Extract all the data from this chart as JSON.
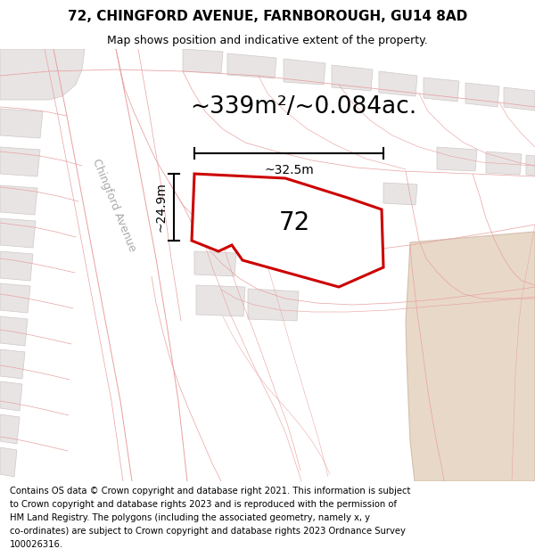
{
  "title_line1": "72, CHINGFORD AVENUE, FARNBOROUGH, GU14 8AD",
  "title_line2": "Map shows position and indicative extent of the property.",
  "area_text": "~339m²/~0.084ac.",
  "property_number": "72",
  "width_label": "~32.5m",
  "height_label": "~24.9m",
  "street_label": "Chingford Avenue",
  "footer_lines": [
    "Contains OS data © Crown copyright and database right 2021. This information is subject",
    "to Crown copyright and database rights 2023 and is reproduced with the permission of",
    "HM Land Registry. The polygons (including the associated geometry, namely x, y",
    "co-ordinates) are subject to Crown copyright and database rights 2023 Ordnance Survey",
    "100026316."
  ],
  "map_bg": "#f9f5f5",
  "parcel_line_color": "#e8a0a0",
  "building_fill": "#e8e4e4",
  "building_edge": "#d0c8c8",
  "tan_fill": "#e8d8c8",
  "tan_edge": "#d4bfaf",
  "property_fill": "white",
  "property_outline": "#cc0000",
  "title_fontsize": 11,
  "subtitle_fontsize": 9,
  "area_fontsize": 19,
  "label_fontsize": 10,
  "street_fontsize": 9,
  "footer_fontsize": 7.2,
  "property_label_fontsize": 20
}
